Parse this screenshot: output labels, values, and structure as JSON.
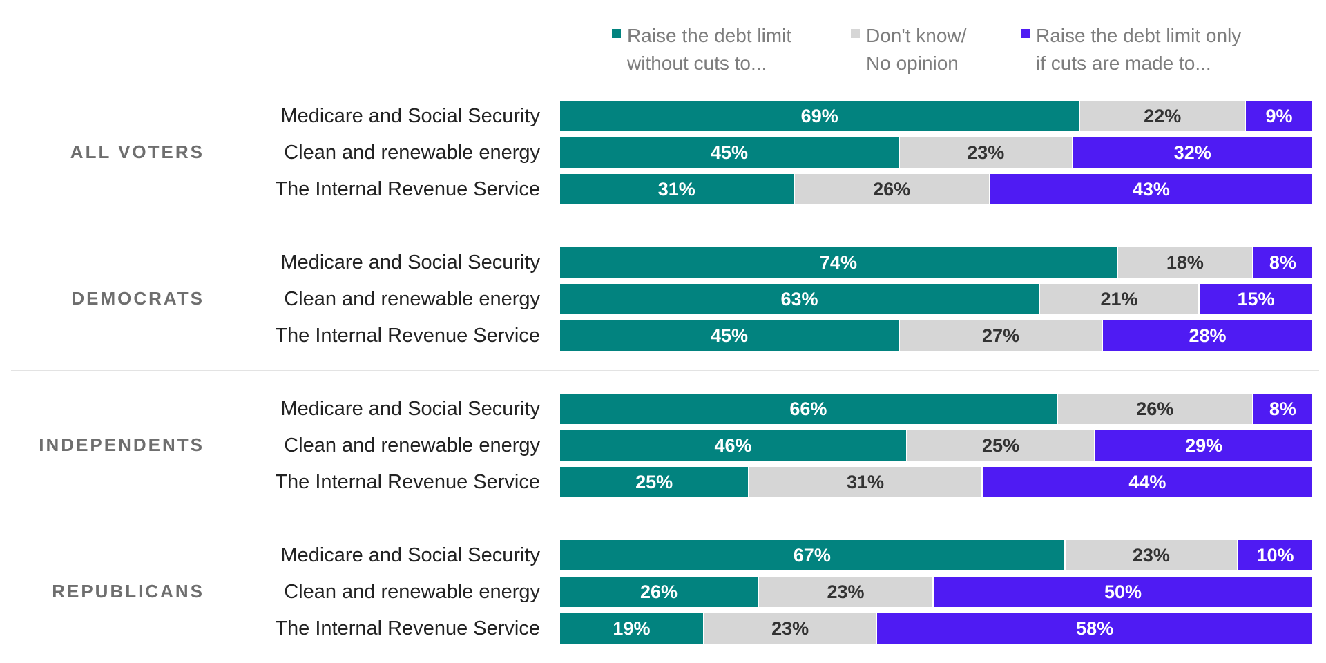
{
  "colors": {
    "raise_without_cuts": "#02837f",
    "dont_know": "#d6d6d6",
    "raise_only_if_cuts": "#4f1bf3",
    "label_dark_text": "#333333",
    "label_light_text": "#ffffff"
  },
  "legend": [
    {
      "key": "raise_without_cuts",
      "label": "Raise the debt limit\nwithout cuts to..."
    },
    {
      "key": "dont_know",
      "label": "Don't know/\nNo opinion"
    },
    {
      "key": "raise_only_if_cuts",
      "label": "Raise the debt limit only\nif cuts are made to..."
    }
  ],
  "chart_data": {
    "type": "bar",
    "orientation": "horizontal",
    "stacked": true,
    "value_unit": "%",
    "series": [
      {
        "name": "Raise the debt limit without cuts to...",
        "key": "raise_without_cuts"
      },
      {
        "name": "Don't know/ No opinion",
        "key": "dont_know"
      },
      {
        "name": "Raise the debt limit only if cuts are made to...",
        "key": "raise_only_if_cuts"
      }
    ],
    "groups": [
      {
        "name": "ALL VOTERS",
        "rows": [
          {
            "label": "Medicare and Social Security",
            "values": [
              69,
              22,
              9
            ]
          },
          {
            "label": "Clean and renewable energy",
            "values": [
              45,
              23,
              32
            ]
          },
          {
            "label": "The Internal Revenue Service",
            "values": [
              31,
              26,
              43
            ]
          }
        ]
      },
      {
        "name": "DEMOCRATS",
        "rows": [
          {
            "label": "Medicare and Social Security",
            "values": [
              74,
              18,
              8
            ]
          },
          {
            "label": "Clean and renewable energy",
            "values": [
              63,
              21,
              15
            ]
          },
          {
            "label": "The Internal Revenue Service",
            "values": [
              45,
              27,
              28
            ]
          }
        ]
      },
      {
        "name": "INDEPENDENTS",
        "rows": [
          {
            "label": "Medicare and Social Security",
            "values": [
              66,
              26,
              8
            ]
          },
          {
            "label": "Clean and renewable energy",
            "values": [
              46,
              25,
              29
            ]
          },
          {
            "label": "The Internal Revenue Service",
            "values": [
              25,
              31,
              44
            ]
          }
        ]
      },
      {
        "name": "REPUBLICANS",
        "rows": [
          {
            "label": "Medicare and Social Security",
            "values": [
              67,
              23,
              10
            ]
          },
          {
            "label": "Clean and renewable energy",
            "values": [
              26,
              23,
              50
            ]
          },
          {
            "label": "The Internal Revenue Service",
            "values": [
              19,
              23,
              58
            ]
          }
        ]
      }
    ]
  }
}
